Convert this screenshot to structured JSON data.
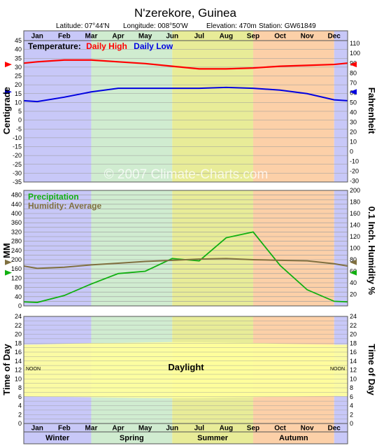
{
  "header": {
    "title": "N'zerekore,  Guinea",
    "latitude": "Latitude: 07°44'N",
    "longitude": "Longitude: 008°50'W",
    "elevation": "Elevation: 470m",
    "station": "Station: GW61849"
  },
  "watermark": "© 2007 Climate-Charts.com",
  "colors": {
    "winter": "#c8c8f8",
    "spring": "#d0ecd0",
    "summer": "#e8ec98",
    "autumn": "#fcd0a8",
    "daily_high": "#ff0000",
    "daily_low": "#0000e0",
    "precipitation": "#10b010",
    "humidity": "#807040",
    "daylight": "#ffff9c"
  },
  "chart_data": [
    {
      "type": "line",
      "panel": "temperature",
      "legend_label": "Temperature:",
      "months": [
        "Jan",
        "Feb",
        "Mar",
        "Apr",
        "May",
        "Jun",
        "Jul",
        "Aug",
        "Sep",
        "Oct",
        "Nov",
        "Dec"
      ],
      "ylabel_left": "Centigrade",
      "ylabel_right": "Fahrenheit",
      "ylim": [
        -35,
        45
      ],
      "yticks_left": [
        45,
        40,
        35,
        30,
        25,
        20,
        15,
        10,
        5,
        0,
        -5,
        -10,
        -15,
        -20,
        -25,
        -30,
        -35
      ],
      "yticks_right": [
        110,
        100,
        90,
        80,
        70,
        60,
        50,
        40,
        30,
        20,
        10,
        0,
        -10,
        -20,
        -30
      ],
      "series": [
        {
          "name": "Daily High",
          "values": [
            33,
            34,
            34,
            33,
            32,
            30.5,
            29,
            29,
            29.5,
            30.5,
            31,
            31.5
          ]
        },
        {
          "name": "Daily Low",
          "values": [
            10.5,
            13,
            16,
            18,
            18,
            18,
            18,
            18.5,
            18,
            17,
            15,
            11.5
          ]
        }
      ],
      "annual_mean_marker": {
        "high": 31.5,
        "low": 16
      }
    },
    {
      "type": "line",
      "panel": "precipitation_humidity",
      "ylabel_left": "MM",
      "ylabel_right": "0.1 Inch. Humidity %",
      "ylim": [
        0,
        500
      ],
      "yticks_left": [
        480,
        440,
        400,
        360,
        320,
        280,
        240,
        200,
        160,
        120,
        80,
        40,
        0
      ],
      "yticks_right": [
        200,
        180,
        160,
        140,
        120,
        100,
        80,
        60,
        40,
        20
      ],
      "series": [
        {
          "name": "Precipitation",
          "values": [
            15,
            45,
            95,
            140,
            150,
            205,
            195,
            295,
            320,
            175,
            70,
            20
          ]
        },
        {
          "name": "Humidity: Average",
          "values_percent": [
            65,
            67,
            71,
            74,
            77,
            79,
            81,
            82,
            80,
            79,
            78,
            73
          ]
        }
      ]
    },
    {
      "type": "area",
      "panel": "daylight",
      "label": "Daylight",
      "noon_label": "NOON",
      "ylabel_left": "Time of Day",
      "ylabel_right": "Time of Day",
      "ylim": [
        0,
        24
      ],
      "yticks": [
        24,
        22,
        20,
        18,
        16,
        14,
        12,
        10,
        8,
        6,
        4,
        2,
        0
      ],
      "sunrise": [
        6.05,
        5.97,
        5.89,
        5.8,
        5.72,
        5.7,
        5.73,
        5.82,
        5.91,
        6.0,
        6.1,
        6.15
      ],
      "sunset": [
        17.71,
        17.86,
        17.96,
        18.05,
        18.15,
        18.23,
        18.22,
        18.12,
        18.0,
        17.87,
        17.74,
        17.67
      ],
      "seasons": [
        {
          "name": "Winter",
          "start": 0,
          "end": 2.5
        },
        {
          "name": "Spring",
          "start": 2.5,
          "end": 5.5
        },
        {
          "name": "Summer",
          "start": 5.5,
          "end": 8.5
        },
        {
          "name": "Autumn",
          "start": 8.5,
          "end": 11.5
        }
      ]
    }
  ]
}
